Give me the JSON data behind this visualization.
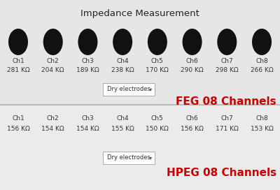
{
  "title": "Impedance Measurement",
  "title_fontsize": 9.5,
  "bg_color_top": "#e6e6e6",
  "bg_color_bottom": "#ebebeb",
  "divider_color": "#bbbbbb",
  "channels_feg": [
    "Ch1",
    "Ch2",
    "Ch3",
    "Ch4",
    "Ch5",
    "Ch6",
    "Ch7",
    "Ch8"
  ],
  "values_feg": [
    "281 KΩ",
    "204 KΩ",
    "189 KΩ",
    "238 KΩ",
    "170 KΩ",
    "290 KΩ",
    "298 KΩ",
    "266 KΩ"
  ],
  "channels_hpeg": [
    "Ch1",
    "Ch2",
    "Ch3",
    "Ch4",
    "Ch5",
    "Ch6",
    "Ch7",
    "Ch8"
  ],
  "values_hpeg": [
    "156 KΩ",
    "154 KΩ",
    "154 KΩ",
    "155 KΩ",
    "150 KΩ",
    "156 KΩ",
    "171 KΩ",
    "153 KΩ"
  ],
  "circle_color": "#111111",
  "label_feg": "FEG 08 Channels",
  "label_hpeg": "HPEG 08 Channels",
  "label_color": "#cc0000",
  "label_fontsize": 11,
  "ch_fontsize": 6.5,
  "val_fontsize": 6.5,
  "dry_electrodes_text": "Dry electrodes",
  "dropdown_bg": "#ffffff",
  "dropdown_border": "#aaaaaa",
  "fig_width": 4.0,
  "fig_height": 2.72,
  "dpi": 100
}
